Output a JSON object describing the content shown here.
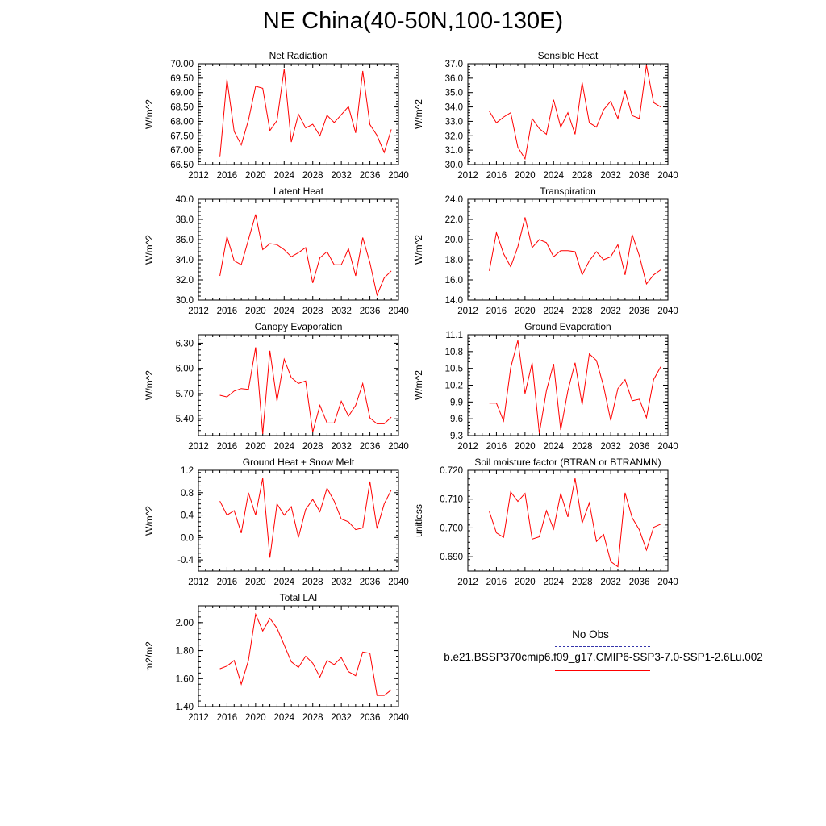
{
  "title": "NE China(40-50N,100-130E)",
  "colors": {
    "model": "#ff0000",
    "obs": "#3333aa",
    "axis": "#000000"
  },
  "legend": {
    "obs_label": "No Obs",
    "model_label": "b.e21.BSSP370cmip6.f09_g17.CMIP6-SSP3-7.0-SSP1-2.6Lu.002"
  },
  "chart_data": [
    {
      "type": "line",
      "title": "Net Radiation",
      "xlabel": "",
      "ylabel": "W/m^2",
      "xlim": [
        2012,
        2040
      ],
      "ylim": [
        66.5,
        70.0
      ],
      "xticks": [
        2012,
        2016,
        2020,
        2024,
        2028,
        2032,
        2036,
        2040
      ],
      "yticks": [
        "66.50",
        "67.00",
        "67.50",
        "68.00",
        "68.50",
        "69.00",
        "69.50",
        "70.00"
      ],
      "series": [
        {
          "x": [
            2015,
            2016,
            2017,
            2018,
            2019,
            2020,
            2021,
            2022,
            2023,
            2024,
            2025,
            2026,
            2027,
            2028,
            2029,
            2030,
            2031,
            2032,
            2033,
            2034,
            2035,
            2036,
            2037,
            2038,
            2039
          ],
          "values": [
            66.76,
            69.46,
            67.65,
            67.18,
            68.04,
            69.22,
            69.15,
            67.68,
            68.03,
            69.82,
            67.28,
            68.25,
            67.77,
            67.9,
            67.5,
            68.21,
            67.96,
            68.23,
            68.51,
            67.6,
            69.75,
            67.89,
            67.51,
            66.92,
            67.72
          ]
        }
      ]
    },
    {
      "type": "line",
      "title": "Sensible Heat",
      "xlabel": "",
      "ylabel": "W/m^2",
      "xlim": [
        2012,
        2040
      ],
      "ylim": [
        30.0,
        37.0
      ],
      "xticks": [
        2012,
        2016,
        2020,
        2024,
        2028,
        2032,
        2036,
        2040
      ],
      "yticks": [
        "30.0",
        "31.0",
        "32.0",
        "33.0",
        "34.0",
        "35.0",
        "36.0",
        "37.0"
      ],
      "series": [
        {
          "x": [
            2015,
            2016,
            2017,
            2018,
            2019,
            2020,
            2021,
            2022,
            2023,
            2024,
            2025,
            2026,
            2027,
            2028,
            2029,
            2030,
            2031,
            2032,
            2033,
            2034,
            2035,
            2036,
            2037,
            2038,
            2039
          ],
          "values": [
            33.7,
            32.9,
            33.3,
            33.6,
            31.2,
            30.4,
            33.2,
            32.5,
            32.1,
            34.5,
            32.6,
            33.6,
            32.1,
            35.7,
            32.9,
            32.6,
            33.8,
            34.4,
            33.2,
            35.1,
            33.4,
            33.2,
            36.9,
            34.3,
            34.0
          ]
        }
      ]
    },
    {
      "type": "line",
      "title": "Latent Heat",
      "xlabel": "",
      "ylabel": "W/m^2",
      "xlim": [
        2012,
        2040
      ],
      "ylim": [
        30.0,
        40.0
      ],
      "xticks": [
        2012,
        2016,
        2020,
        2024,
        2028,
        2032,
        2036,
        2040
      ],
      "yticks": [
        "30.0",
        "32.0",
        "34.0",
        "36.0",
        "38.0",
        "40.0"
      ],
      "series": [
        {
          "x": [
            2015,
            2016,
            2017,
            2018,
            2019,
            2020,
            2021,
            2022,
            2023,
            2024,
            2025,
            2026,
            2027,
            2028,
            2029,
            2030,
            2031,
            2032,
            2033,
            2034,
            2035,
            2036,
            2037,
            2038,
            2039
          ],
          "values": [
            32.4,
            36.3,
            33.9,
            33.5,
            36.0,
            38.5,
            35.0,
            35.6,
            35.5,
            35.0,
            34.3,
            34.7,
            35.2,
            31.7,
            34.2,
            34.8,
            33.5,
            33.5,
            35.1,
            32.4,
            36.2,
            33.7,
            30.5,
            32.2,
            32.9
          ]
        }
      ]
    },
    {
      "type": "line",
      "title": "Transpiration",
      "xlabel": "",
      "ylabel": "W/m^2",
      "xlim": [
        2012,
        2040
      ],
      "ylim": [
        14.0,
        24.0
      ],
      "xticks": [
        2012,
        2016,
        2020,
        2024,
        2028,
        2032,
        2036,
        2040
      ],
      "yticks": [
        "14.0",
        "16.0",
        "18.0",
        "20.0",
        "22.0",
        "24.0"
      ],
      "series": [
        {
          "x": [
            2015,
            2016,
            2017,
            2018,
            2019,
            2020,
            2021,
            2022,
            2023,
            2024,
            2025,
            2026,
            2027,
            2028,
            2029,
            2030,
            2031,
            2032,
            2033,
            2034,
            2035,
            2036,
            2037,
            2038,
            2039
          ],
          "values": [
            16.9,
            20.7,
            18.6,
            17.3,
            19.3,
            22.2,
            19.2,
            20.0,
            19.7,
            18.3,
            18.9,
            18.9,
            18.8,
            16.5,
            17.9,
            18.8,
            18.0,
            18.3,
            19.5,
            16.5,
            20.5,
            18.4,
            15.6,
            16.5,
            17.0
          ]
        }
      ]
    },
    {
      "type": "line",
      "title": "Canopy Evaporation",
      "xlabel": "",
      "ylabel": "W/m^2",
      "xlim": [
        2012,
        2040
      ],
      "ylim": [
        5.2,
        6.4
      ],
      "xticks": [
        2012,
        2016,
        2020,
        2024,
        2028,
        2032,
        2036,
        2040
      ],
      "yticks": [
        "5.40",
        "5.70",
        "6.00",
        "6.30"
      ],
      "series": [
        {
          "x": [
            2015,
            2016,
            2017,
            2018,
            2019,
            2020,
            2021,
            2022,
            2023,
            2024,
            2025,
            2026,
            2027,
            2028,
            2029,
            2030,
            2031,
            2032,
            2033,
            2034,
            2035,
            2036,
            2037,
            2038,
            2039
          ],
          "values": [
            5.68,
            5.66,
            5.73,
            5.76,
            5.75,
            6.25,
            5.22,
            6.21,
            5.61,
            6.11,
            5.89,
            5.82,
            5.85,
            5.24,
            5.56,
            5.35,
            5.35,
            5.61,
            5.43,
            5.56,
            5.82,
            5.41,
            5.34,
            5.34,
            5.42
          ]
        }
      ]
    },
    {
      "type": "line",
      "title": "Ground Evaporation",
      "xlabel": "",
      "ylabel": "W/m^2",
      "xlim": [
        2012,
        2040
      ],
      "ylim": [
        9.3,
        11.1
      ],
      "xticks": [
        2012,
        2016,
        2020,
        2024,
        2028,
        2032,
        2036,
        2040
      ],
      "yticks": [
        "9.3",
        "9.6",
        "9.9",
        "10.2",
        "10.5",
        "10.8",
        "11.1"
      ],
      "series": [
        {
          "x": [
            2015,
            2016,
            2017,
            2018,
            2019,
            2020,
            2021,
            2022,
            2023,
            2024,
            2025,
            2026,
            2027,
            2028,
            2029,
            2030,
            2031,
            2032,
            2033,
            2034,
            2035,
            2036,
            2037,
            2038,
            2039
          ],
          "values": [
            9.88,
            9.88,
            9.56,
            10.51,
            11.0,
            10.05,
            10.6,
            9.34,
            10.1,
            10.58,
            9.4,
            10.1,
            10.6,
            9.85,
            10.76,
            10.64,
            10.18,
            9.57,
            10.14,
            10.3,
            9.92,
            9.95,
            9.62,
            10.3,
            10.53
          ]
        }
      ]
    },
    {
      "type": "line",
      "title": "Ground Heat + Snow Melt",
      "xlabel": "",
      "ylabel": "W/m^2",
      "xlim": [
        2012,
        2040
      ],
      "ylim": [
        -0.6,
        1.2
      ],
      "xticks": [
        2012,
        2016,
        2020,
        2024,
        2028,
        2032,
        2036,
        2040
      ],
      "yticks": [
        "-0.4",
        "0.0",
        "0.4",
        "0.8",
        "1.2"
      ],
      "series": [
        {
          "x": [
            2015,
            2016,
            2017,
            2018,
            2019,
            2020,
            2021,
            2022,
            2023,
            2024,
            2025,
            2026,
            2027,
            2028,
            2029,
            2030,
            2031,
            2032,
            2033,
            2034,
            2035,
            2036,
            2037,
            2038,
            2039
          ],
          "values": [
            0.65,
            0.4,
            0.48,
            0.08,
            0.8,
            0.4,
            1.06,
            -0.36,
            0.6,
            0.4,
            0.55,
            0.0,
            0.5,
            0.68,
            0.46,
            0.88,
            0.65,
            0.33,
            0.28,
            0.14,
            0.17,
            1.0,
            0.16,
            0.6,
            0.85
          ]
        }
      ]
    },
    {
      "type": "line",
      "title": "Soil moisture factor (BTRAN or BTRANMN)",
      "xlabel": "",
      "ylabel": "unitless",
      "xlim": [
        2012,
        2040
      ],
      "ylim": [
        0.685,
        0.72
      ],
      "xticks": [
        2012,
        2016,
        2020,
        2024,
        2028,
        2032,
        2036,
        2040
      ],
      "yticks": [
        "0.690",
        "0.700",
        "0.710",
        "0.720"
      ],
      "series": [
        {
          "x": [
            2015,
            2016,
            2017,
            2018,
            2019,
            2020,
            2021,
            2022,
            2023,
            2024,
            2025,
            2026,
            2027,
            2028,
            2029,
            2030,
            2031,
            2032,
            2033,
            2034,
            2035,
            2036,
            2037,
            2038,
            2039
          ],
          "values": [
            0.7057,
            0.6983,
            0.6967,
            0.7125,
            0.7092,
            0.712,
            0.6961,
            0.6969,
            0.706,
            0.6996,
            0.712,
            0.7038,
            0.7172,
            0.7017,
            0.7087,
            0.6953,
            0.6977,
            0.6883,
            0.6865,
            0.7122,
            0.7035,
            0.6993,
            0.6923,
            0.7002,
            0.7013
          ]
        }
      ]
    },
    {
      "type": "line",
      "title": "Total LAI",
      "xlabel": "",
      "ylabel": "m2/m2",
      "xlim": [
        2012,
        2040
      ],
      "ylim": [
        1.4,
        2.12
      ],
      "xticks": [
        2012,
        2016,
        2020,
        2024,
        2028,
        2032,
        2036,
        2040
      ],
      "yticks": [
        "1.40",
        "1.60",
        "1.80",
        "2.00"
      ],
      "series": [
        {
          "x": [
            2015,
            2016,
            2017,
            2018,
            2019,
            2020,
            2021,
            2022,
            2023,
            2024,
            2025,
            2026,
            2027,
            2028,
            2029,
            2030,
            2031,
            2032,
            2033,
            2034,
            2035,
            2036,
            2037,
            2038,
            2039
          ],
          "values": [
            1.67,
            1.69,
            1.73,
            1.56,
            1.73,
            2.06,
            1.94,
            2.03,
            1.96,
            1.84,
            1.72,
            1.68,
            1.76,
            1.71,
            1.61,
            1.73,
            1.7,
            1.75,
            1.65,
            1.62,
            1.79,
            1.78,
            1.48,
            1.48,
            1.52
          ]
        }
      ]
    }
  ]
}
